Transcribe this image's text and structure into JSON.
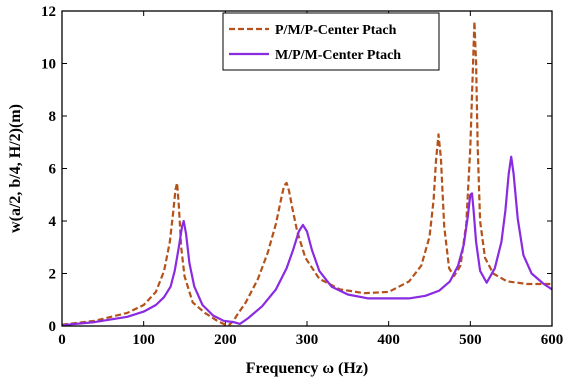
{
  "chart_data": {
    "type": "line",
    "xlabel": "Frequency ω (Hz)",
    "ylabel": "w(a/2, b/4, H/2)(m)",
    "xlim": [
      0,
      600
    ],
    "ylim": [
      0,
      12
    ],
    "x_ticks": [
      "0",
      "100",
      "200",
      "300",
      "400",
      "500",
      "600"
    ],
    "y_ticks": [
      "0",
      "2",
      "4",
      "6",
      "8",
      "10",
      "12"
    ],
    "grid": false,
    "legend_position": "top-right",
    "series": [
      {
        "name": "P/M/P-Center Ptach",
        "color": "#b5521b",
        "style": "dashed",
        "x": [
          0,
          40,
          80,
          100,
          115,
          125,
          132,
          136,
          139,
          141,
          143,
          146,
          150,
          160,
          175,
          190,
          200,
          205,
          210,
          215,
          225,
          240,
          252,
          262,
          268,
          272,
          275,
          278,
          282,
          288,
          298,
          315,
          340,
          370,
          400,
          425,
          440,
          450,
          455,
          458,
          461,
          464,
          468,
          474,
          480,
          488,
          495,
          500,
          503,
          505,
          507,
          509,
          512,
          518,
          528,
          545,
          570,
          600
        ],
        "y": [
          0.05,
          0.2,
          0.5,
          0.8,
          1.3,
          2.1,
          3.2,
          4.3,
          5.2,
          5.45,
          4.6,
          3.0,
          1.9,
          0.9,
          0.5,
          0.2,
          0.05,
          0.05,
          0.2,
          0.45,
          0.9,
          1.8,
          2.8,
          3.9,
          4.8,
          5.35,
          5.45,
          5.15,
          4.5,
          3.6,
          2.6,
          1.8,
          1.4,
          1.25,
          1.3,
          1.7,
          2.3,
          3.4,
          4.8,
          6.3,
          7.3,
          6.4,
          3.8,
          2.2,
          1.9,
          2.3,
          3.9,
          6.8,
          9.7,
          11.6,
          10.0,
          6.8,
          4.0,
          2.6,
          2.0,
          1.7,
          1.6,
          1.6
        ]
      },
      {
        "name": "M/P/M-Center Ptach",
        "color": "#8a2be2",
        "style": "solid",
        "x": [
          0,
          40,
          80,
          100,
          115,
          125,
          133,
          138,
          143,
          147,
          149,
          152,
          156,
          162,
          172,
          185,
          198,
          210,
          218,
          228,
          245,
          262,
          275,
          283,
          290,
          295,
          300,
          306,
          315,
          330,
          350,
          375,
          400,
          425,
          445,
          462,
          475,
          485,
          492,
          497,
          500,
          502,
          504,
          507,
          512,
          520,
          530,
          538,
          543,
          547,
          550,
          553,
          558,
          565,
          575,
          590,
          600
        ],
        "y": [
          0.03,
          0.15,
          0.35,
          0.55,
          0.8,
          1.1,
          1.5,
          2.1,
          3.0,
          3.8,
          4.0,
          3.5,
          2.4,
          1.5,
          0.8,
          0.4,
          0.2,
          0.15,
          0.08,
          0.3,
          0.75,
          1.4,
          2.2,
          2.9,
          3.6,
          3.85,
          3.6,
          2.9,
          2.1,
          1.5,
          1.2,
          1.05,
          1.05,
          1.05,
          1.15,
          1.35,
          1.7,
          2.3,
          3.1,
          4.2,
          5.0,
          5.05,
          4.4,
          3.2,
          2.1,
          1.65,
          2.2,
          3.2,
          4.4,
          5.8,
          6.45,
          5.8,
          4.1,
          2.7,
          2.0,
          1.6,
          1.4
        ]
      }
    ]
  }
}
